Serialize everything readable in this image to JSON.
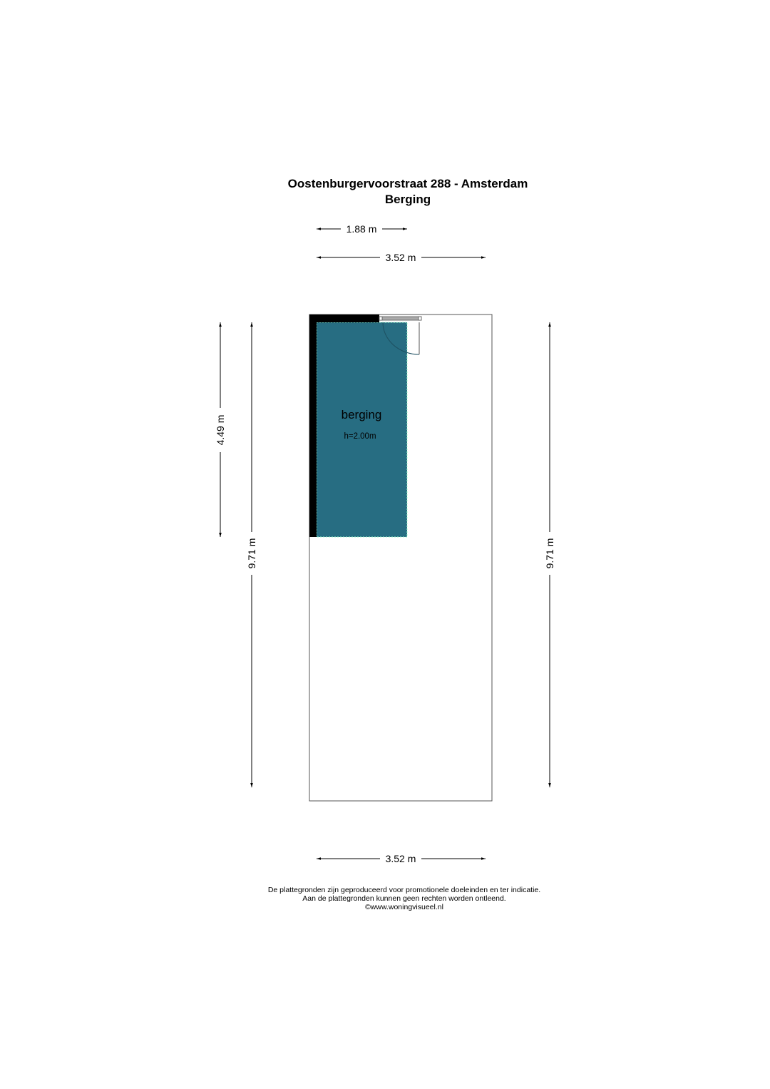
{
  "header": {
    "title": "Oostenburgervoorstraat 288 - Amsterdam",
    "subtitle": "Berging"
  },
  "dimensions": {
    "top_partial": "1.88 m",
    "top_total": "3.52 m",
    "left_partial": "4.49 m",
    "left_total": "9.71 m",
    "right_total": "9.71 m",
    "bottom_total": "3.52 m"
  },
  "room": {
    "name": "berging",
    "height": "h=2.00m",
    "fill_color": "#276d82"
  },
  "footer": {
    "line1": "De plattegronden zijn geproduceerd voor promotionele doeleinden en ter indicatie.",
    "line2": "Aan de plattegronden kunnen geen rechten worden ontleend.",
    "line3": "©www.woningvisueel.nl"
  }
}
